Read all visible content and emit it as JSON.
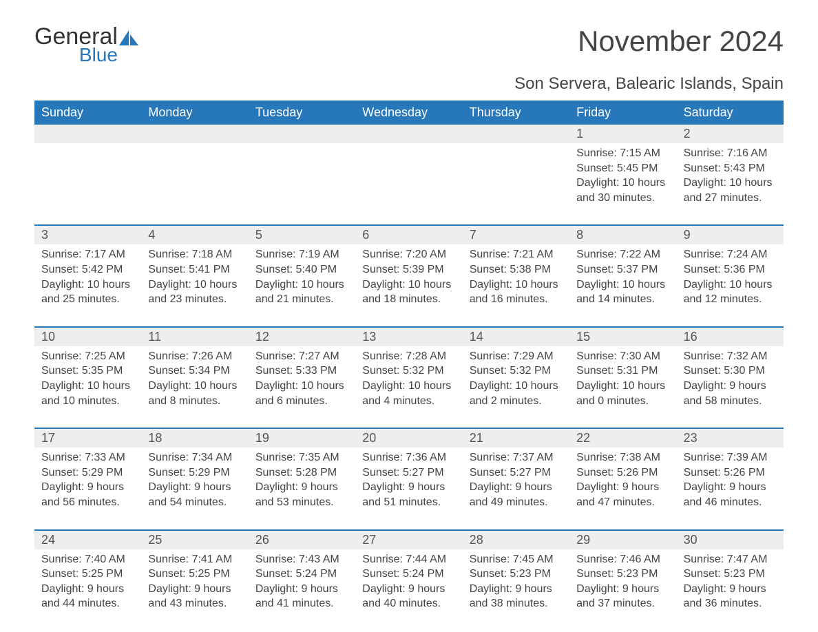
{
  "brand": {
    "word1": "General",
    "word2": "Blue"
  },
  "title": "November 2024",
  "location": "Son Servera, Balearic Islands, Spain",
  "calendar": {
    "type": "table",
    "columns": [
      "Sunday",
      "Monday",
      "Tuesday",
      "Wednesday",
      "Thursday",
      "Friday",
      "Saturday"
    ],
    "header_bg": "#2777bb",
    "header_fg": "#ffffff",
    "row_divider_color": "#2777bb",
    "daynum_bg": "#eeeeee",
    "text_color": "#444444",
    "body_fontsize": 16,
    "header_fontsize": 18,
    "weeks": [
      [
        null,
        null,
        null,
        null,
        null,
        {
          "n": "1",
          "sunrise": "Sunrise: 7:15 AM",
          "sunset": "Sunset: 5:45 PM",
          "daylight": "Daylight: 10 hours and 30 minutes."
        },
        {
          "n": "2",
          "sunrise": "Sunrise: 7:16 AM",
          "sunset": "Sunset: 5:43 PM",
          "daylight": "Daylight: 10 hours and 27 minutes."
        }
      ],
      [
        {
          "n": "3",
          "sunrise": "Sunrise: 7:17 AM",
          "sunset": "Sunset: 5:42 PM",
          "daylight": "Daylight: 10 hours and 25 minutes."
        },
        {
          "n": "4",
          "sunrise": "Sunrise: 7:18 AM",
          "sunset": "Sunset: 5:41 PM",
          "daylight": "Daylight: 10 hours and 23 minutes."
        },
        {
          "n": "5",
          "sunrise": "Sunrise: 7:19 AM",
          "sunset": "Sunset: 5:40 PM",
          "daylight": "Daylight: 10 hours and 21 minutes."
        },
        {
          "n": "6",
          "sunrise": "Sunrise: 7:20 AM",
          "sunset": "Sunset: 5:39 PM",
          "daylight": "Daylight: 10 hours and 18 minutes."
        },
        {
          "n": "7",
          "sunrise": "Sunrise: 7:21 AM",
          "sunset": "Sunset: 5:38 PM",
          "daylight": "Daylight: 10 hours and 16 minutes."
        },
        {
          "n": "8",
          "sunrise": "Sunrise: 7:22 AM",
          "sunset": "Sunset: 5:37 PM",
          "daylight": "Daylight: 10 hours and 14 minutes."
        },
        {
          "n": "9",
          "sunrise": "Sunrise: 7:24 AM",
          "sunset": "Sunset: 5:36 PM",
          "daylight": "Daylight: 10 hours and 12 minutes."
        }
      ],
      [
        {
          "n": "10",
          "sunrise": "Sunrise: 7:25 AM",
          "sunset": "Sunset: 5:35 PM",
          "daylight": "Daylight: 10 hours and 10 minutes."
        },
        {
          "n": "11",
          "sunrise": "Sunrise: 7:26 AM",
          "sunset": "Sunset: 5:34 PM",
          "daylight": "Daylight: 10 hours and 8 minutes."
        },
        {
          "n": "12",
          "sunrise": "Sunrise: 7:27 AM",
          "sunset": "Sunset: 5:33 PM",
          "daylight": "Daylight: 10 hours and 6 minutes."
        },
        {
          "n": "13",
          "sunrise": "Sunrise: 7:28 AM",
          "sunset": "Sunset: 5:32 PM",
          "daylight": "Daylight: 10 hours and 4 minutes."
        },
        {
          "n": "14",
          "sunrise": "Sunrise: 7:29 AM",
          "sunset": "Sunset: 5:32 PM",
          "daylight": "Daylight: 10 hours and 2 minutes."
        },
        {
          "n": "15",
          "sunrise": "Sunrise: 7:30 AM",
          "sunset": "Sunset: 5:31 PM",
          "daylight": "Daylight: 10 hours and 0 minutes."
        },
        {
          "n": "16",
          "sunrise": "Sunrise: 7:32 AM",
          "sunset": "Sunset: 5:30 PM",
          "daylight": "Daylight: 9 hours and 58 minutes."
        }
      ],
      [
        {
          "n": "17",
          "sunrise": "Sunrise: 7:33 AM",
          "sunset": "Sunset: 5:29 PM",
          "daylight": "Daylight: 9 hours and 56 minutes."
        },
        {
          "n": "18",
          "sunrise": "Sunrise: 7:34 AM",
          "sunset": "Sunset: 5:29 PM",
          "daylight": "Daylight: 9 hours and 54 minutes."
        },
        {
          "n": "19",
          "sunrise": "Sunrise: 7:35 AM",
          "sunset": "Sunset: 5:28 PM",
          "daylight": "Daylight: 9 hours and 53 minutes."
        },
        {
          "n": "20",
          "sunrise": "Sunrise: 7:36 AM",
          "sunset": "Sunset: 5:27 PM",
          "daylight": "Daylight: 9 hours and 51 minutes."
        },
        {
          "n": "21",
          "sunrise": "Sunrise: 7:37 AM",
          "sunset": "Sunset: 5:27 PM",
          "daylight": "Daylight: 9 hours and 49 minutes."
        },
        {
          "n": "22",
          "sunrise": "Sunrise: 7:38 AM",
          "sunset": "Sunset: 5:26 PM",
          "daylight": "Daylight: 9 hours and 47 minutes."
        },
        {
          "n": "23",
          "sunrise": "Sunrise: 7:39 AM",
          "sunset": "Sunset: 5:26 PM",
          "daylight": "Daylight: 9 hours and 46 minutes."
        }
      ],
      [
        {
          "n": "24",
          "sunrise": "Sunrise: 7:40 AM",
          "sunset": "Sunset: 5:25 PM",
          "daylight": "Daylight: 9 hours and 44 minutes."
        },
        {
          "n": "25",
          "sunrise": "Sunrise: 7:41 AM",
          "sunset": "Sunset: 5:25 PM",
          "daylight": "Daylight: 9 hours and 43 minutes."
        },
        {
          "n": "26",
          "sunrise": "Sunrise: 7:43 AM",
          "sunset": "Sunset: 5:24 PM",
          "daylight": "Daylight: 9 hours and 41 minutes."
        },
        {
          "n": "27",
          "sunrise": "Sunrise: 7:44 AM",
          "sunset": "Sunset: 5:24 PM",
          "daylight": "Daylight: 9 hours and 40 minutes."
        },
        {
          "n": "28",
          "sunrise": "Sunrise: 7:45 AM",
          "sunset": "Sunset: 5:23 PM",
          "daylight": "Daylight: 9 hours and 38 minutes."
        },
        {
          "n": "29",
          "sunrise": "Sunrise: 7:46 AM",
          "sunset": "Sunset: 5:23 PM",
          "daylight": "Daylight: 9 hours and 37 minutes."
        },
        {
          "n": "30",
          "sunrise": "Sunrise: 7:47 AM",
          "sunset": "Sunset: 5:23 PM",
          "daylight": "Daylight: 9 hours and 36 minutes."
        }
      ]
    ]
  }
}
